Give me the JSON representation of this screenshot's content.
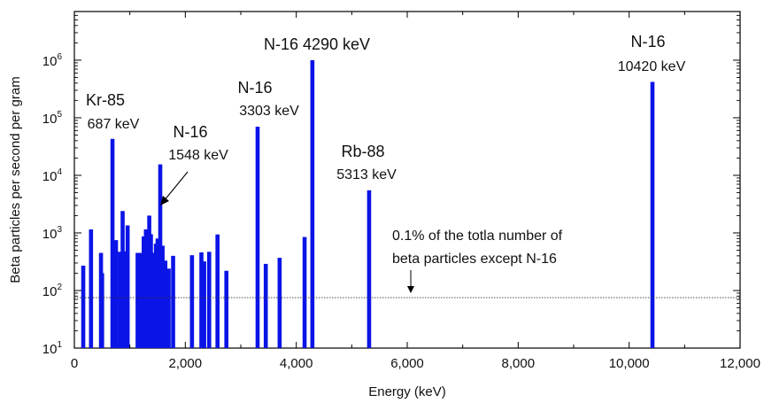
{
  "chart_data": {
    "type": "bar",
    "xlabel": "Energy (keV)",
    "ylabel": "Beta particles per second per gram",
    "xlim": [
      0,
      12000
    ],
    "ylim": [
      10,
      7000000
    ],
    "yscale": "log",
    "grid": false,
    "legend": "none",
    "bar_color": "#0a14e6",
    "x_ticks": [
      {
        "value": 0,
        "label": "0"
      },
      {
        "value": 2000,
        "label": "2,000"
      },
      {
        "value": 4000,
        "label": "4,000"
      },
      {
        "value": 6000,
        "label": "6,000"
      },
      {
        "value": 8000,
        "label": "8,000"
      },
      {
        "value": 10000,
        "label": 10000,
        "text": "10,000"
      },
      {
        "value": 12000,
        "label": "12,000"
      }
    ],
    "y_ticks": [
      {
        "value": 10,
        "base": "10",
        "exp": "1"
      },
      {
        "value": 100,
        "base": "10",
        "exp": "2"
      },
      {
        "value": 1000,
        "base": "10",
        "exp": "3"
      },
      {
        "value": 10000,
        "base": "10",
        "exp": "4"
      },
      {
        "value": 100000,
        "base": "10",
        "exp": "5"
      },
      {
        "value": 1000000,
        "base": "10",
        "exp": "6"
      }
    ],
    "bars": [
      {
        "x": 160,
        "y": 270
      },
      {
        "x": 300,
        "y": 1150
      },
      {
        "x": 480,
        "y": 450
      },
      {
        "x": 500,
        "y": 200
      },
      {
        "x": 687,
        "y": 43000
      },
      {
        "x": 750,
        "y": 750
      },
      {
        "x": 820,
        "y": 470
      },
      {
        "x": 870,
        "y": 2400
      },
      {
        "x": 920,
        "y": 480
      },
      {
        "x": 960,
        "y": 1350
      },
      {
        "x": 1140,
        "y": 450
      },
      {
        "x": 1200,
        "y": 450
      },
      {
        "x": 1250,
        "y": 870
      },
      {
        "x": 1290,
        "y": 1150
      },
      {
        "x": 1320,
        "y": 280
      },
      {
        "x": 1350,
        "y": 2000
      },
      {
        "x": 1380,
        "y": 950
      },
      {
        "x": 1400,
        "y": 320
      },
      {
        "x": 1420,
        "y": 450
      },
      {
        "x": 1470,
        "y": 650
      },
      {
        "x": 1500,
        "y": 800
      },
      {
        "x": 1548,
        "y": 15500
      },
      {
        "x": 1590,
        "y": 600
      },
      {
        "x": 1640,
        "y": 330
      },
      {
        "x": 1700,
        "y": 240
      },
      {
        "x": 1780,
        "y": 400
      },
      {
        "x": 2120,
        "y": 410
      },
      {
        "x": 2290,
        "y": 460
      },
      {
        "x": 2340,
        "y": 320
      },
      {
        "x": 2430,
        "y": 470
      },
      {
        "x": 2580,
        "y": 940
      },
      {
        "x": 2740,
        "y": 220
      },
      {
        "x": 3303,
        "y": 70000
      },
      {
        "x": 3450,
        "y": 290
      },
      {
        "x": 3700,
        "y": 370
      },
      {
        "x": 4150,
        "y": 850
      },
      {
        "x": 4290,
        "y": 1000000
      },
      {
        "x": 5313,
        "y": 5500
      },
      {
        "x": 10420,
        "y": 420000
      }
    ],
    "reference_line": {
      "y": 75,
      "label_line1": "0.1% of the totla number of",
      "label_line2": "beta particles except N-16"
    },
    "annotations": [
      {
        "line1": "Kr-85",
        "line2": "687 keV"
      },
      {
        "line1": "N-16",
        "line2": "1548 keV"
      },
      {
        "line1": "N-16",
        "line2": "3303 keV"
      },
      {
        "line1": "N-16 4290 keV",
        "line2": ""
      },
      {
        "line1": "Rb-88",
        "line2": "5313 keV"
      },
      {
        "line1": "N-16",
        "line2": "10420 keV"
      }
    ]
  }
}
